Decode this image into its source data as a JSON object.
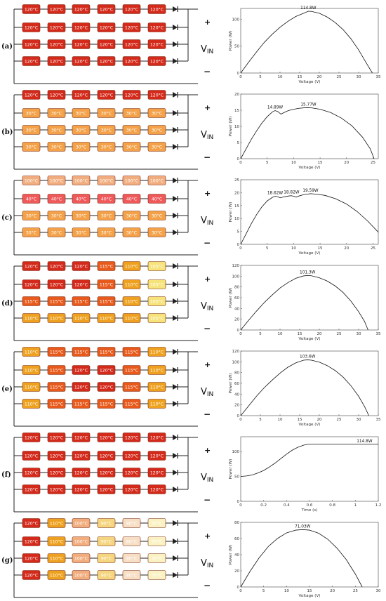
{
  "vin_label": "V",
  "vin_sub": "IN",
  "plus": "+",
  "minus": "−",
  "palette": {
    "120": "#d42a1b",
    "115": "#e85a1c",
    "110": "#eea11f",
    "105": "#f6e37a",
    "100": "#f2ad7e",
    "90": "#f5d57e",
    "80": "#f7dfc5",
    "70": "#fbf2c4",
    "40": "#f0595a",
    "30": "#f3a24a",
    "stroke": "#7a2a12",
    "wire": "#222222"
  },
  "panels": [
    {
      "label": "(a)",
      "rows": [
        [
          "120°C",
          "120°C",
          "120°C",
          "120°C",
          "120°C",
          "120°C"
        ],
        [
          "120°C",
          "120°C",
          "120°C",
          "120°C",
          "120°C",
          "120°C"
        ],
        [
          "120°C",
          "120°C",
          "120°C",
          "120°C",
          "120°C",
          "120°C"
        ],
        [
          "120°C",
          "120°C",
          "120°C",
          "120°C",
          "120°C",
          "120°C"
        ]
      ],
      "chart_data": {
        "type": "line",
        "xlabel": "Voltage (V)",
        "ylabel": "Power (W)",
        "xlim": [
          0,
          35
        ],
        "ylim": [
          0,
          120
        ],
        "xticks": [
          "0",
          "5",
          "10",
          "15",
          "20",
          "25",
          "30",
          "35"
        ],
        "yticks": [
          "0",
          "50",
          "100"
        ],
        "x": [
          0,
          2,
          4,
          6,
          8,
          10,
          12,
          14,
          16,
          17.2,
          18,
          20,
          22,
          24,
          26,
          28,
          30,
          32,
          33.5
        ],
        "y": [
          0,
          20,
          39,
          57,
          72,
          85,
          96,
          105,
          111,
          114.8,
          114.5,
          111,
          104,
          94,
          81,
          64,
          43,
          18,
          0
        ],
        "annotations": [
          {
            "text": "114.8W",
            "x": 17.2,
            "y": 114.8
          }
        ]
      }
    },
    {
      "label": "(b)",
      "rows": [
        [
          "120°C",
          "120°C",
          "120°C",
          "120°C",
          "120°C",
          "120°C"
        ],
        [
          "30°C",
          "30°C",
          "30°C",
          "30°C",
          "30°C",
          "30°C"
        ],
        [
          "30°C",
          "30°C",
          "30°C",
          "30°C",
          "30°C",
          "30°C"
        ],
        [
          "30°C",
          "30°C",
          "30°C",
          "30°C",
          "30°C",
          "30°C"
        ]
      ],
      "chart_data": {
        "type": "line",
        "xlabel": "Voltage (V)",
        "ylabel": "Power (W)",
        "xlim": [
          0,
          26
        ],
        "ylim": [
          0,
          20
        ],
        "xticks": [
          "0",
          "5",
          "10",
          "15",
          "20",
          "25"
        ],
        "yticks": [
          "0",
          "5",
          "10",
          "15",
          "20"
        ],
        "x": [
          0,
          1,
          2,
          3,
          4,
          5,
          6,
          6.5,
          7,
          7.6,
          8.2,
          9,
          10,
          11,
          12,
          12.8,
          13.5,
          15,
          17,
          19,
          21,
          23,
          24.5,
          25.2
        ],
        "y": [
          0,
          3,
          6,
          8.6,
          11,
          13,
          14.5,
          14.89,
          14.6,
          13.8,
          14.3,
          14.9,
          15.3,
          15.6,
          15.75,
          15.77,
          15.7,
          15.3,
          14.3,
          12.6,
          10.2,
          6.7,
          3,
          0
        ],
        "annotations": [
          {
            "text": "14.89W",
            "x": 6.5,
            "y": 14.89
          },
          {
            "text": "15.77W",
            "x": 12.8,
            "y": 15.77
          }
        ]
      }
    },
    {
      "label": "(c)",
      "rows": [
        [
          "100°C",
          "100°C",
          "100°C",
          "100°C",
          "100°C",
          "100°C"
        ],
        [
          "40°C",
          "40°C",
          "40°C",
          "40°C",
          "40°C",
          "40°C"
        ],
        [
          "30°C",
          "30°C",
          "30°C",
          "30°C",
          "30°C",
          "30°C"
        ],
        [
          "30°C",
          "30°C",
          "30°C",
          "30°C",
          "30°C",
          "30°C"
        ]
      ],
      "chart_data": {
        "type": "line",
        "xlabel": "Voltage (V)",
        "ylabel": "Power (W)",
        "xlim": [
          0,
          26
        ],
        "ylim": [
          0,
          25
        ],
        "xticks": [
          "0",
          "5",
          "10",
          "15",
          "20",
          "25"
        ],
        "yticks": [
          "0",
          "5",
          "10",
          "15",
          "20",
          "25"
        ],
        "x": [
          0,
          1,
          2,
          3,
          4,
          5,
          6,
          6.5,
          7,
          7.5,
          8,
          9,
          9.6,
          10,
          10.5,
          11,
          12,
          13.2,
          14.5,
          16,
          18,
          20,
          22,
          24,
          26
        ],
        "y": [
          0,
          4,
          8,
          11.5,
          14.5,
          16.8,
          18.2,
          18.62,
          18.4,
          18,
          18.3,
          18.7,
          18.82,
          18.6,
          18.3,
          18.7,
          19.3,
          19.59,
          19.4,
          18.9,
          17.6,
          15.6,
          12.7,
          9,
          4.7
        ],
        "annotations": [
          {
            "text": "18.62W",
            "x": 6.5,
            "y": 18.62
          },
          {
            "text": "18.82W",
            "x": 9.6,
            "y": 18.82
          },
          {
            "text": "19.59W",
            "x": 13.2,
            "y": 19.59
          }
        ]
      }
    },
    {
      "label": "(d)",
      "rows": [
        [
          "120°C",
          "120°C",
          "120°C",
          "115°C",
          "110°C",
          "105°C"
        ],
        [
          "120°C",
          "120°C",
          "120°C",
          "115°C",
          "110°C",
          "105°C"
        ],
        [
          "115°C",
          "115°C",
          "115°C",
          "115°C",
          "110°C",
          "105°C"
        ],
        [
          "110°C",
          "110°C",
          "110°C",
          "110°C",
          "110°C",
          "105°C"
        ]
      ],
      "chart_data": {
        "type": "line",
        "xlabel": "Voltage (V)",
        "ylabel": "Power (W)",
        "xlim": [
          0,
          35
        ],
        "ylim": [
          0,
          120
        ],
        "xticks": [
          "0",
          "5",
          "10",
          "15",
          "20",
          "25",
          "30",
          "35"
        ],
        "yticks": [
          "0",
          "20",
          "40",
          "60",
          "80",
          "100",
          "120"
        ],
        "x": [
          0,
          2,
          4,
          6,
          8,
          10,
          12,
          14,
          16,
          17,
          18,
          20,
          22,
          24,
          26,
          28,
          30,
          31.5,
          32.4
        ],
        "y": [
          0,
          18,
          35,
          51,
          65,
          78,
          88,
          96,
          100.5,
          101.3,
          100.8,
          97,
          91,
          82,
          70,
          54,
          34,
          16,
          0
        ],
        "annotations": [
          {
            "text": "101.3W",
            "x": 17,
            "y": 101.3
          }
        ]
      }
    },
    {
      "label": "(e)",
      "rows": [
        [
          "110°C",
          "115°C",
          "115°C",
          "115°C",
          "115°C",
          "110°C"
        ],
        [
          "110°C",
          "115°C",
          "120°C",
          "120°C",
          "115°C",
          "110°C"
        ],
        [
          "110°C",
          "115°C",
          "120°C",
          "120°C",
          "115°C",
          "110°C"
        ],
        [
          "110°C",
          "115°C",
          "115°C",
          "115°C",
          "115°C",
          "110°C"
        ]
      ],
      "chart_data": {
        "type": "line",
        "xlabel": "Voltage (V)",
        "ylabel": "Power (W)",
        "xlim": [
          0,
          35
        ],
        "ylim": [
          0,
          120
        ],
        "xticks": [
          "0",
          "5",
          "10",
          "15",
          "20",
          "25",
          "30",
          "35"
        ],
        "yticks": [
          "0",
          "20",
          "40",
          "60",
          "80",
          "100",
          "120"
        ],
        "x": [
          0,
          2,
          4,
          6,
          8,
          10,
          12,
          14,
          16,
          17,
          18,
          20,
          22,
          24,
          26,
          28,
          30,
          31.5,
          32.6
        ],
        "y": [
          0,
          18,
          36,
          52,
          66,
          79,
          90,
          98,
          103,
          103.6,
          103.1,
          99.5,
          93,
          84,
          72,
          56,
          36,
          17,
          0
        ],
        "annotations": [
          {
            "text": "103.6W",
            "x": 17,
            "y": 103.6
          }
        ]
      }
    },
    {
      "label": "(f)",
      "rows": [
        [
          "120°C",
          "120°C",
          "120°C",
          "120°C",
          "120°C",
          "120°C"
        ],
        [
          "120°C",
          "120°C",
          "120°C",
          "120°C",
          "120°C",
          "120°C"
        ],
        [
          "120°C",
          "120°C",
          "120°C",
          "120°C",
          "120°C",
          "120°C"
        ],
        [
          "120°C",
          "120°C",
          "120°C",
          "120°C",
          "120°C",
          "120°C"
        ]
      ],
      "chart_data": {
        "type": "line",
        "xlabel": "Time (s)",
        "ylabel": "Power (W)",
        "xlim": [
          0,
          1.2
        ],
        "ylim": [
          0,
          130
        ],
        "xticks": [
          "0",
          "0.2",
          "0.4",
          "0.6",
          "0.8",
          "1",
          "1.2"
        ],
        "yticks": [
          "0",
          "50",
          "100"
        ],
        "x": [
          0,
          0.05,
          0.1,
          0.15,
          0.2,
          0.25,
          0.3,
          0.35,
          0.4,
          0.45,
          0.5,
          0.55,
          0.58,
          0.6,
          0.8,
          1.0,
          1.2
        ],
        "y": [
          50,
          51,
          53,
          57,
          62,
          69,
          77,
          86,
          95,
          103,
          109,
          113,
          114.6,
          114.8,
          114.8,
          114.8,
          114.8
        ],
        "annotations": [
          {
            "text": "114.8W",
            "x": 1.08,
            "y": 114.8
          }
        ]
      }
    },
    {
      "label": "(g)",
      "rows": [
        [
          "120°C",
          "110°C",
          "100°C",
          "90°C",
          "80°C",
          "70°C"
        ],
        [
          "120°C",
          "110°C",
          "100°C",
          "90°C",
          "80°C",
          "70°C"
        ],
        [
          "120°C",
          "110°C",
          "100°C",
          "90°C",
          "80°C",
          "70°C"
        ],
        [
          "120°C",
          "110°C",
          "100°C",
          "90°C",
          "80°C",
          "70°C"
        ]
      ],
      "chart_data": {
        "type": "line",
        "xlabel": "Voltage (V)",
        "ylabel": "Power (W)",
        "xlim": [
          0,
          30
        ],
        "ylim": [
          0,
          80
        ],
        "xticks": [
          "0",
          "5",
          "10",
          "15",
          "20",
          "25",
          "30"
        ],
        "yticks": [
          "0",
          "20",
          "40",
          "60",
          "80"
        ],
        "x": [
          0,
          2,
          4,
          6,
          8,
          10,
          12,
          13.5,
          15,
          17,
          19,
          21,
          23,
          25,
          26.5
        ],
        "y": [
          0,
          19,
          36,
          50,
          60,
          67,
          70.4,
          71.03,
          70.4,
          66.5,
          59,
          48,
          34,
          16,
          0
        ],
        "annotations": [
          {
            "text": "71.03W",
            "x": 13.5,
            "y": 71.03
          }
        ]
      }
    }
  ]
}
